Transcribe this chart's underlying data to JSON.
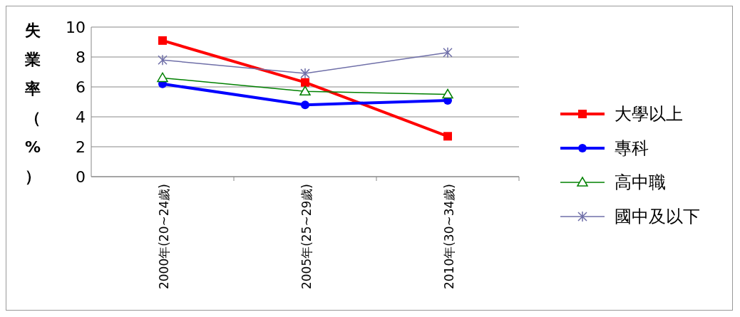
{
  "chart_data": {
    "type": "line",
    "ylabel": "失業率（%）",
    "categories": [
      "2000年(20~24歲)",
      "2005年(25~29歲)",
      "2010年(30~34歲)"
    ],
    "ylim": [
      0,
      10
    ],
    "yticks": [
      0,
      2,
      4,
      6,
      8,
      10
    ],
    "grid": "y",
    "legend": "right",
    "series": [
      {
        "name": "大學以上",
        "color": "#ff0000",
        "marker": "square",
        "values": [
          9.1,
          6.3,
          2.7
        ]
      },
      {
        "name": "專科",
        "color": "#0000ff",
        "marker": "circle",
        "values": [
          6.2,
          4.8,
          5.1
        ]
      },
      {
        "name": "高中職",
        "color": "#008000",
        "marker": "triangle",
        "values": [
          6.6,
          5.7,
          5.5
        ]
      },
      {
        "name": "國中及以下",
        "color": "#6f6fa8",
        "marker": "cross",
        "values": [
          7.8,
          6.9,
          8.3
        ]
      }
    ]
  }
}
